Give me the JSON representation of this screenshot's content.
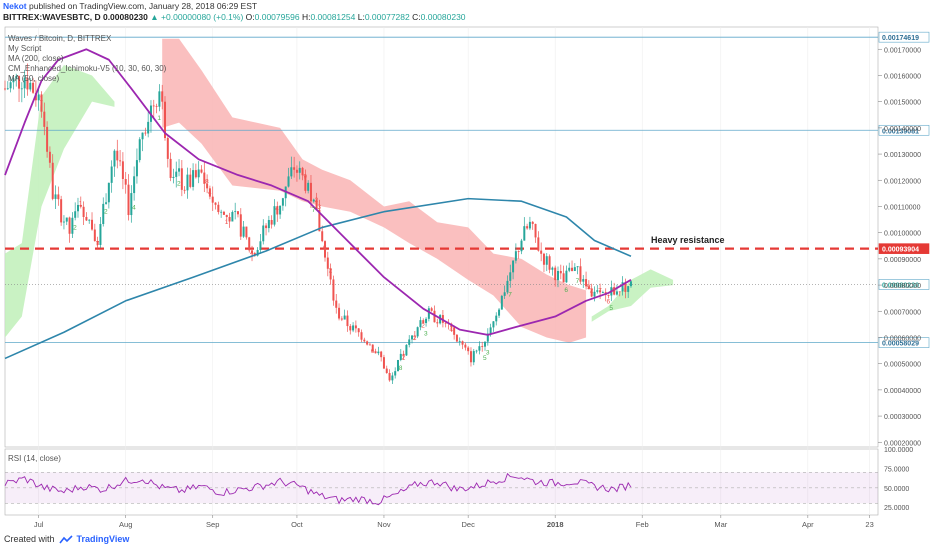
{
  "header": {
    "author": "Nekot",
    "published": "published on TradingView.com, January 28, 2018 06:29 EST",
    "symbol": "BITTREX:WAVESBTC, D",
    "last_price": "0.00080230",
    "change": "▲ +0.00000080 (+0.1%)",
    "open_label": "O:",
    "open": "0.00079596",
    "high_label": "H:",
    "high": "0.00081254",
    "low_label": "L:",
    "low": "0.00077282",
    "close_label": "C:",
    "close": "0.00080230"
  },
  "footer": {
    "created_with": "Created with",
    "brand": "TradingView"
  },
  "colors": {
    "up": "#26a69a",
    "down": "#ef5350",
    "ma_fast": "#9c27b0",
    "ma_slow": "#2e86ab",
    "cloud_bear": "#f9b4b4",
    "cloud_bull": "#bff0b8",
    "resistance": "#e53935",
    "hline": "#5fa8c9"
  },
  "chart_data": {
    "type": "candlestick",
    "title": "Waves / Bitcoin, D, BITTREX",
    "indicators": [
      "My Script",
      "MA (200, close)",
      "CM_Enhanced_Ichimoku-V5 (10, 30, 60, 30)",
      "MA (50, close)"
    ],
    "x_ticks": [
      "Jul",
      "Aug",
      "Sep",
      "Oct",
      "Nov",
      "Dec",
      "2018",
      "Feb",
      "Mar",
      "Apr",
      "23"
    ],
    "y_ticks": [
      0.0002,
      0.0003,
      0.0004,
      0.0005,
      0.0006,
      0.0007,
      0.0008,
      0.0009,
      0.001,
      0.0011,
      0.0012,
      0.0013,
      0.0014,
      0.0015,
      0.0016,
      0.0017
    ],
    "y_tick_labels": [
      "0.00020000",
      "0.00030000",
      "0.00040000",
      "0.00050000",
      "0.00060000",
      "0.00070000",
      "0.00080000",
      "0.00090000",
      "0.00100000",
      "0.00110000",
      "0.00120000",
      "0.00130000",
      "0.00140000",
      "0.00150000",
      "0.00160000",
      "0.00170000"
    ],
    "ylim": [
      0.000182,
      0.001785
    ],
    "x_start": "2017-06-19",
    "x_end": "2018-04-26",
    "horizontal_lines": [
      {
        "value": 0.00174619,
        "label": "0.00174619",
        "style": "solid"
      },
      {
        "value": 0.00139081,
        "label": "0.00139081",
        "style": "solid"
      },
      {
        "value": 0.00093904,
        "label": "0.00093904",
        "style": "dashed-red"
      },
      {
        "value": 0.0008023,
        "label": "0.00080230",
        "style": "dotted"
      },
      {
        "value": 0.00058029,
        "label": "0.00058029",
        "style": "solid"
      }
    ],
    "annotation": "Heavy resistance",
    "price_anchors": [
      [
        "2017-06-19",
        0.00155
      ],
      [
        "2017-06-26",
        0.0016
      ],
      [
        "2017-07-02",
        0.0015
      ],
      [
        "2017-07-06",
        0.00115
      ],
      [
        "2017-07-12",
        0.001
      ],
      [
        "2017-07-16",
        0.00112
      ],
      [
        "2017-07-22",
        0.00098
      ],
      [
        "2017-07-28",
        0.00132
      ],
      [
        "2017-08-02",
        0.0011
      ],
      [
        "2017-08-07",
        0.0014
      ],
      [
        "2017-08-13",
        0.00155
      ],
      [
        "2017-08-17",
        0.00125
      ],
      [
        "2017-08-22",
        0.00118
      ],
      [
        "2017-08-28",
        0.00122
      ],
      [
        "2017-09-03",
        0.00108
      ],
      [
        "2017-09-10",
        0.00104
      ],
      [
        "2017-09-15",
        0.00092
      ],
      [
        "2017-09-20",
        0.00102
      ],
      [
        "2017-09-25",
        0.00112
      ],
      [
        "2017-09-30",
        0.00125
      ],
      [
        "2017-10-05",
        0.00118
      ],
      [
        "2017-10-09",
        0.00102
      ],
      [
        "2017-10-12",
        0.00085
      ],
      [
        "2017-10-15",
        0.0007
      ],
      [
        "2017-10-20",
        0.00064
      ],
      [
        "2017-10-25",
        0.0006
      ],
      [
        "2017-10-31",
        0.00052
      ],
      [
        "2017-11-03",
        0.00043
      ],
      [
        "2017-11-07",
        0.00052
      ],
      [
        "2017-11-12",
        0.00062
      ],
      [
        "2017-11-17",
        0.00069
      ],
      [
        "2017-11-22",
        0.00066
      ],
      [
        "2017-11-28",
        0.00058
      ],
      [
        "2017-12-02",
        0.00052
      ],
      [
        "2017-12-07",
        0.0006
      ],
      [
        "2017-12-12",
        0.00072
      ],
      [
        "2017-12-16",
        0.00085
      ],
      [
        "2017-12-20",
        0.00098
      ],
      [
        "2017-12-23",
        0.00103
      ],
      [
        "2017-12-27",
        0.00092
      ],
      [
        "2017-12-31",
        0.00086
      ],
      [
        "2018-01-04",
        0.00081
      ],
      [
        "2018-01-08",
        0.00089
      ],
      [
        "2018-01-11",
        0.0008
      ],
      [
        "2018-01-15",
        0.00076
      ],
      [
        "2018-01-19",
        0.00076
      ],
      [
        "2018-01-23",
        0.00079
      ],
      [
        "2018-01-28",
        0.0008
      ]
    ],
    "series": [
      {
        "name": "MA (200, close)",
        "points": [
          [
            "2017-06-19",
            0.00052
          ],
          [
            "2017-07-10",
            0.00062
          ],
          [
            "2017-08-01",
            0.00074
          ],
          [
            "2017-08-25",
            0.00083
          ],
          [
            "2017-09-20",
            0.00093
          ],
          [
            "2017-10-10",
            0.00102
          ],
          [
            "2017-11-01",
            0.00108
          ],
          [
            "2017-12-01",
            0.00113
          ],
          [
            "2017-12-20",
            0.00112
          ],
          [
            "2018-01-05",
            0.00106
          ],
          [
            "2018-01-15",
            0.00097
          ],
          [
            "2018-01-28",
            0.00091
          ]
        ]
      },
      {
        "name": "MA (50, close)",
        "points": [
          [
            "2017-06-19",
            0.00122
          ],
          [
            "2017-06-26",
            0.00142
          ],
          [
            "2017-07-02",
            0.00158
          ],
          [
            "2017-07-08",
            0.00166
          ],
          [
            "2017-07-18",
            0.0017
          ],
          [
            "2017-07-26",
            0.00166
          ],
          [
            "2017-08-03",
            0.00155
          ],
          [
            "2017-08-15",
            0.00138
          ],
          [
            "2017-08-27",
            0.00128
          ],
          [
            "2017-09-10",
            0.00122
          ],
          [
            "2017-09-22",
            0.00118
          ],
          [
            "2017-10-05",
            0.00112
          ],
          [
            "2017-10-18",
            0.00098
          ],
          [
            "2017-11-01",
            0.00083
          ],
          [
            "2017-11-15",
            0.00071
          ],
          [
            "2017-11-28",
            0.00063
          ],
          [
            "2017-12-08",
            0.00061
          ],
          [
            "2017-12-18",
            0.00064
          ],
          [
            "2018-01-01",
            0.00068
          ],
          [
            "2018-01-12",
            0.00074
          ],
          [
            "2018-01-20",
            0.00077
          ],
          [
            "2018-01-28",
            0.00082
          ]
        ]
      }
    ],
    "cloud_bear": [
      [
        "2017-08-14",
        0.00174,
        0.0014
      ],
      [
        "2017-08-20",
        0.00174,
        0.00142
      ],
      [
        "2017-08-28",
        0.00162,
        0.00134
      ],
      [
        "2017-09-08",
        0.00144,
        0.00118
      ],
      [
        "2017-09-25",
        0.0014,
        0.00116
      ],
      [
        "2017-10-03",
        0.00128,
        0.00112
      ],
      [
        "2017-10-10",
        0.00124,
        0.0011
      ],
      [
        "2017-10-20",
        0.0012,
        0.00108
      ],
      [
        "2017-11-01",
        0.0011,
        0.00102
      ],
      [
        "2017-11-10",
        0.00112,
        0.00096
      ],
      [
        "2017-11-20",
        0.00104,
        0.0009
      ],
      [
        "2017-12-01",
        0.00102,
        0.00082
      ],
      [
        "2017-12-10",
        0.00092,
        0.00076
      ],
      [
        "2017-12-20",
        0.0009,
        0.00064
      ],
      [
        "2017-12-29",
        0.00084,
        0.0006
      ],
      [
        "2018-01-06",
        0.0008,
        0.00058
      ],
      [
        "2018-01-12",
        0.00078,
        0.0006
      ]
    ],
    "cloud_bull": [
      [
        "2017-06-19",
        0.00092,
        0.0006
      ],
      [
        "2017-06-25",
        0.00096,
        0.00068
      ],
      [
        "2017-07-02",
        0.00152,
        0.0011
      ],
      [
        "2017-07-10",
        0.00164,
        0.00132
      ],
      [
        "2017-07-20",
        0.0016,
        0.0015
      ],
      [
        "2017-07-28",
        0.0015,
        0.00148
      ],
      [
        "2018-01-14",
        0.00068,
        0.00066
      ],
      [
        "2018-01-20",
        0.00072,
        0.0007
      ],
      [
        "2018-01-28",
        0.00082,
        0.00072
      ],
      [
        "2018-02-04",
        0.00086,
        0.00079
      ],
      [
        "2018-02-12",
        0.00082,
        0.0008
      ]
    ],
    "rsi": {
      "label": "RSI (14, close)",
      "ylim": [
        15,
        100
      ],
      "y_tick_labels": [
        "100.0000",
        "75.0000",
        "50.0000",
        "25.0000"
      ],
      "y_ticks": [
        100,
        75,
        50,
        25
      ],
      "band": [
        30,
        70
      ],
      "points": [
        [
          "2017-06-19",
          55
        ],
        [
          "2017-06-26",
          62
        ],
        [
          "2017-07-03",
          50
        ],
        [
          "2017-07-10",
          45
        ],
        [
          "2017-07-17",
          52
        ],
        [
          "2017-07-24",
          48
        ],
        [
          "2017-07-31",
          58
        ],
        [
          "2017-08-07",
          62
        ],
        [
          "2017-08-14",
          50
        ],
        [
          "2017-08-21",
          46
        ],
        [
          "2017-08-28",
          52
        ],
        [
          "2017-09-04",
          44
        ],
        [
          "2017-09-11",
          48
        ],
        [
          "2017-09-18",
          52
        ],
        [
          "2017-09-25",
          58
        ],
        [
          "2017-10-02",
          52
        ],
        [
          "2017-10-09",
          40
        ],
        [
          "2017-10-16",
          34
        ],
        [
          "2017-10-23",
          36
        ],
        [
          "2017-10-30",
          32
        ],
        [
          "2017-11-06",
          42
        ],
        [
          "2017-11-13",
          55
        ],
        [
          "2017-11-20",
          58
        ],
        [
          "2017-11-27",
          48
        ],
        [
          "2017-12-04",
          52
        ],
        [
          "2017-12-11",
          60
        ],
        [
          "2017-12-18",
          66
        ],
        [
          "2017-12-25",
          58
        ],
        [
          "2018-01-01",
          56
        ],
        [
          "2018-01-08",
          58
        ],
        [
          "2018-01-15",
          52
        ],
        [
          "2018-01-22",
          48
        ],
        [
          "2018-01-28",
          54
        ]
      ]
    }
  }
}
